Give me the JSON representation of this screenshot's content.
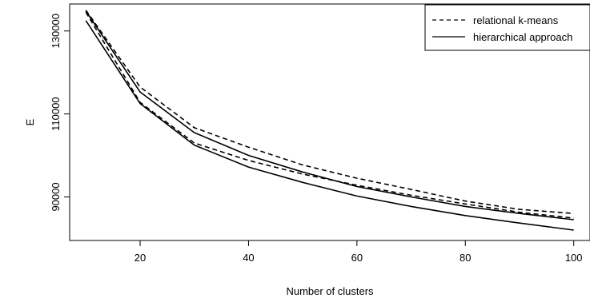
{
  "chart_data": {
    "type": "line",
    "title": "",
    "xlabel": "Number of clusters",
    "ylabel": "E",
    "xlim": [
      7,
      103
    ],
    "ylim": [
      79500,
      136500
    ],
    "x_ticks": [
      20,
      40,
      60,
      80,
      100
    ],
    "y_ticks": [
      90000,
      110000,
      130000
    ],
    "grid": false,
    "legend_position": "top-right",
    "x": [
      10,
      20,
      30,
      40,
      50,
      60,
      70,
      80,
      90,
      100
    ],
    "series": [
      {
        "name": "relational k-means",
        "style": "dashed",
        "values": [
          135000,
          116500,
          106700,
          102000,
          97700,
          94500,
          91800,
          89000,
          87000,
          86000
        ]
      },
      {
        "name": "",
        "style": "dashed",
        "values": [
          134500,
          112800,
          103000,
          98800,
          95500,
          92800,
          90400,
          88300,
          86300,
          84900
        ]
      },
      {
        "name": "hierarchical approach",
        "style": "solid",
        "values": [
          134800,
          115300,
          105500,
          100000,
          96000,
          92500,
          90000,
          87700,
          86000,
          84500
        ]
      },
      {
        "name": "",
        "style": "solid",
        "values": [
          132500,
          112500,
          102500,
          97200,
          93500,
          90200,
          87700,
          85500,
          83700,
          82000
        ]
      }
    ]
  }
}
